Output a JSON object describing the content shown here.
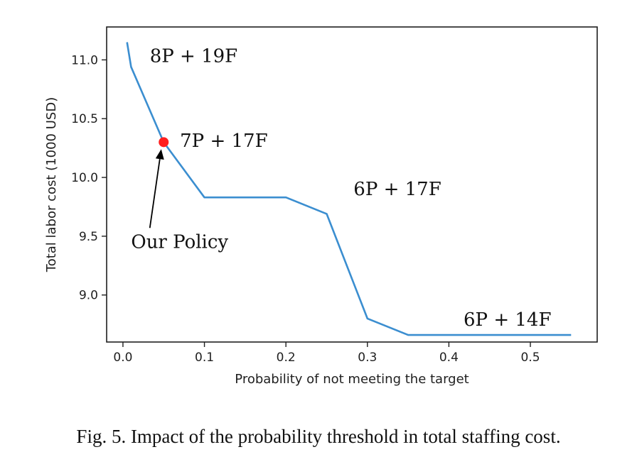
{
  "chart_data": {
    "type": "line",
    "xlabel": "Probability of not meeting the target",
    "ylabel": "Total labor cost (1000 USD)",
    "xlim": [
      -0.02,
      0.582
    ],
    "ylim": [
      8.6,
      11.28
    ],
    "xticks": [
      0.0,
      0.1,
      0.2,
      0.3,
      0.4,
      0.5
    ],
    "xtick_labels": [
      "0.0",
      "0.1",
      "0.2",
      "0.3",
      "0.4",
      "0.5"
    ],
    "yticks": [
      9.0,
      9.5,
      10.0,
      10.5,
      11.0
    ],
    "ytick_labels": [
      "9.0",
      "9.5",
      "10.0",
      "10.5",
      "11.0"
    ],
    "grid": false,
    "line_color": "#3b8ed0",
    "marker_color": "#ff1f1f",
    "series": [
      {
        "x": [
          0.005,
          0.01,
          0.05,
          0.1,
          0.2,
          0.25,
          0.3,
          0.35,
          0.4,
          0.45,
          0.5,
          0.55
        ],
        "y": [
          11.15,
          10.94,
          10.3,
          9.83,
          9.83,
          9.69,
          8.8,
          8.66,
          8.66,
          8.66,
          8.66,
          8.66
        ]
      }
    ],
    "highlight_point": {
      "x": 0.05,
      "y": 10.3
    },
    "annotations": [
      {
        "text": "8P + 19F",
        "x": 0.033,
        "y": 10.98
      },
      {
        "text": "7P + 17F",
        "x": 0.07,
        "y": 10.26
      },
      {
        "text": "6P + 17F",
        "x": 0.283,
        "y": 9.85
      },
      {
        "text": "Our Policy",
        "x": 0.01,
        "y": 9.4
      },
      {
        "text": "6P + 14F",
        "x": 0.418,
        "y": 8.74
      }
    ],
    "arrow": {
      "from": {
        "x": 0.033,
        "y": 9.57
      },
      "to": {
        "x": 0.047,
        "y": 10.24
      }
    }
  },
  "caption": "Fig. 5. Impact of the probability threshold in total staffing cost."
}
